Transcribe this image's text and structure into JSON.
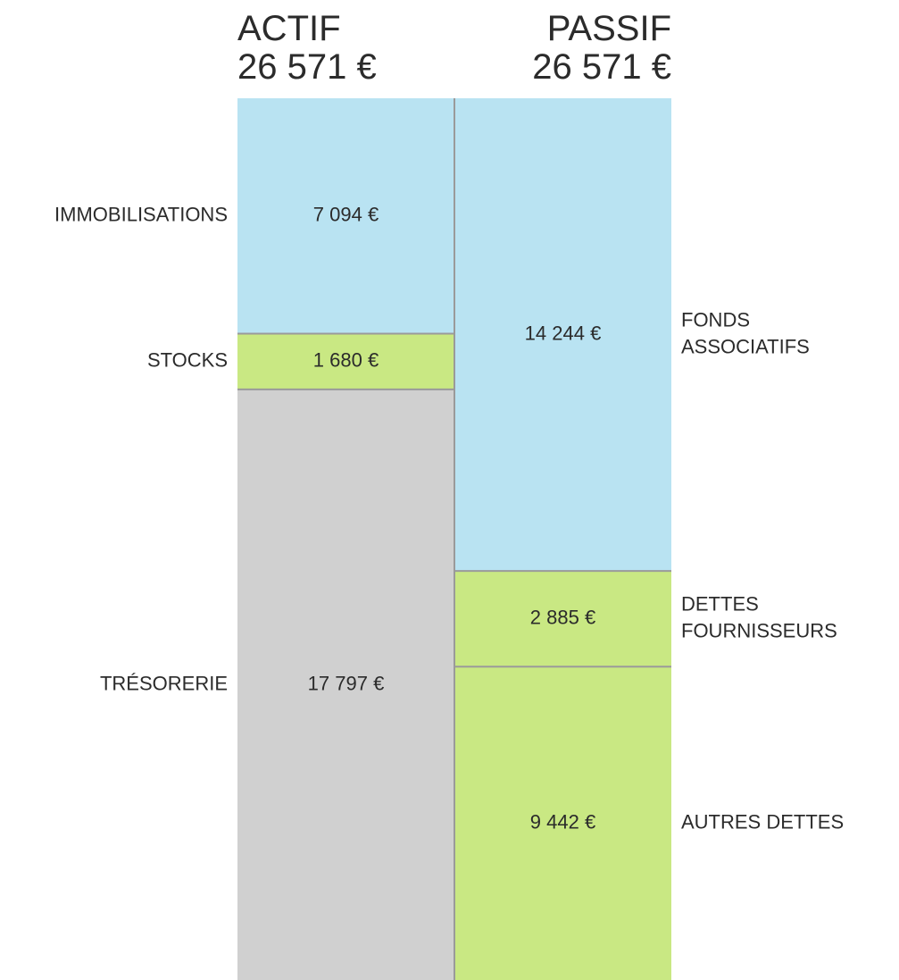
{
  "chart_data": {
    "type": "balance",
    "columns": [
      {
        "name": "ACTIF",
        "total": 26571,
        "total_label": "26 571 €",
        "align": "left",
        "segments": [
          {
            "name": [
              "IMMOBILISATIONS"
            ],
            "value": 7094,
            "value_label": "7 094 €",
            "color": "#b9e3f2"
          },
          {
            "name": [
              "STOCKS"
            ],
            "value": 1680,
            "value_label": "1 680 €",
            "color": "#c9e883"
          },
          {
            "name": [
              "TRÉSORERIE"
            ],
            "value": 17797,
            "value_label": "17 797 €",
            "color": "#d0d0d0"
          }
        ]
      },
      {
        "name": "PASSIF",
        "total": 26571,
        "total_label": "26 571 €",
        "align": "right",
        "segments": [
          {
            "name": [
              "FONDS",
              "ASSOCIATIFS"
            ],
            "value": 14244,
            "value_label": "14 244 €",
            "color": "#b9e3f2"
          },
          {
            "name": [
              "DETTES",
              "FOURNISSEURS"
            ],
            "value": 2885,
            "value_label": "2 885 €",
            "color": "#c9e883"
          },
          {
            "name": [
              "AUTRES DETTES"
            ],
            "value": 9442,
            "value_label": "9 442 €",
            "color": "#c9e883"
          }
        ]
      }
    ]
  }
}
